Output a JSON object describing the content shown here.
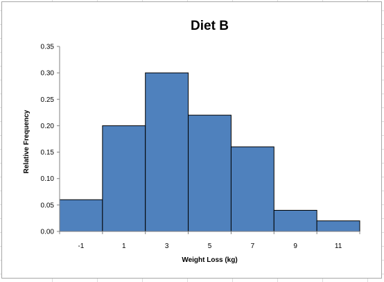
{
  "chart_data": {
    "type": "bar",
    "title": "Diet B",
    "xlabel": "Weight Loss (kg)",
    "ylabel": "Relative Frequency",
    "categories": [
      "-1",
      "1",
      "3",
      "5",
      "7",
      "9",
      "11"
    ],
    "values": [
      0.06,
      0.2,
      0.3,
      0.22,
      0.16,
      0.04,
      0.02
    ],
    "ylim": [
      0,
      0.35
    ],
    "yticks": [
      "0.00",
      "0.05",
      "0.10",
      "0.15",
      "0.20",
      "0.25",
      "0.30",
      "0.35"
    ],
    "grid": false,
    "legend": "none",
    "bar_color": "#4f81bd",
    "bar_edge_color": "#000000"
  }
}
